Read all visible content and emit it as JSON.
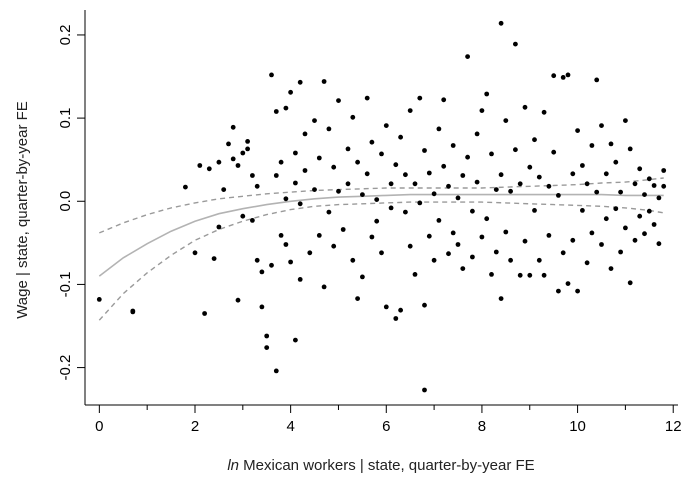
{
  "chart_data": {
    "type": "scatter",
    "title": "",
    "xlabel_italic": "ln",
    "xlabel_rest": " Mexican workers | state, quarter-by-year FE",
    "ylabel": "Wage | state, quarter-by-year FE",
    "xlim": [
      -0.3,
      12.1
    ],
    "ylim": [
      -0.245,
      0.23
    ],
    "x_ticks": [
      0,
      2,
      4,
      6,
      8,
      10,
      12
    ],
    "x_tick_labels": [
      "0",
      "2",
      "4",
      "6",
      "8",
      "10",
      "12"
    ],
    "x_minor_ticks": [
      1,
      3,
      5,
      7,
      9,
      11
    ],
    "y_ticks": [
      -0.2,
      -0.1,
      0.0,
      0.1,
      0.2
    ],
    "y_tick_labels": [
      "-0.2",
      "-0.1",
      "0.0",
      "0.1",
      "0.2"
    ],
    "grid": false,
    "colors": {
      "points": "#000000",
      "fit": "#b3b3b3",
      "ci": "#9a9a9a"
    },
    "fit_line": {
      "x": [
        0,
        0.5,
        1,
        1.5,
        2,
        2.5,
        3,
        3.5,
        4,
        4.5,
        5,
        5.5,
        6,
        6.5,
        7,
        7.5,
        8,
        8.5,
        9,
        9.5,
        10,
        10.5,
        11,
        11.5,
        11.8
      ],
      "y": [
        -0.09,
        -0.068,
        -0.051,
        -0.036,
        -0.024,
        -0.015,
        -0.009,
        -0.004,
        0.0,
        0.003,
        0.005,
        0.006,
        0.007,
        0.008,
        0.008,
        0.008,
        0.008,
        0.008,
        0.008,
        0.008,
        0.008,
        0.008,
        0.007,
        0.007,
        0.007
      ]
    },
    "ci_upper": {
      "x": [
        0,
        0.5,
        1,
        1.5,
        2,
        2.5,
        3,
        3.5,
        4,
        4.5,
        5,
        5.5,
        6,
        6.5,
        7,
        7.5,
        8,
        8.5,
        9,
        9.5,
        10,
        10.5,
        11,
        11.5,
        11.8
      ],
      "y": [
        -0.038,
        -0.026,
        -0.016,
        -0.008,
        -0.002,
        0.003,
        0.006,
        0.009,
        0.011,
        0.013,
        0.014,
        0.015,
        0.016,
        0.016,
        0.016,
        0.016,
        0.016,
        0.017,
        0.018,
        0.019,
        0.02,
        0.022,
        0.023,
        0.026,
        0.028
      ]
    },
    "ci_lower": {
      "x": [
        0,
        0.5,
        1,
        1.5,
        2,
        2.5,
        3,
        3.5,
        4,
        4.5,
        5,
        5.5,
        6,
        6.5,
        7,
        7.5,
        8,
        8.5,
        9,
        9.5,
        10,
        10.5,
        11,
        11.5,
        11.8
      ],
      "y": [
        -0.143,
        -0.111,
        -0.086,
        -0.065,
        -0.047,
        -0.034,
        -0.024,
        -0.016,
        -0.01,
        -0.006,
        -0.004,
        -0.003,
        -0.002,
        -0.001,
        -0.001,
        -0.001,
        -0.001,
        -0.002,
        -0.003,
        -0.004,
        -0.005,
        -0.006,
        -0.008,
        -0.011,
        -0.014
      ]
    },
    "points": [
      [
        0.0,
        -0.118
      ],
      [
        0.7,
        -0.132
      ],
      [
        0.7,
        -0.133
      ],
      [
        1.8,
        0.017
      ],
      [
        2.0,
        -0.062
      ],
      [
        2.1,
        0.043
      ],
      [
        2.2,
        -0.135
      ],
      [
        2.3,
        0.039
      ],
      [
        2.4,
        -0.069
      ],
      [
        2.5,
        0.047
      ],
      [
        2.5,
        -0.031
      ],
      [
        2.6,
        0.014
      ],
      [
        2.7,
        0.069
      ],
      [
        2.8,
        0.089
      ],
      [
        2.8,
        0.051
      ],
      [
        2.9,
        0.043
      ],
      [
        2.9,
        -0.119
      ],
      [
        3.0,
        0.058
      ],
      [
        3.0,
        -0.018
      ],
      [
        3.1,
        0.063
      ],
      [
        3.1,
        0.072
      ],
      [
        3.2,
        -0.023
      ],
      [
        3.2,
        0.031
      ],
      [
        3.3,
        -0.071
      ],
      [
        3.3,
        0.018
      ],
      [
        3.4,
        -0.085
      ],
      [
        3.4,
        -0.127
      ],
      [
        3.5,
        -0.176
      ],
      [
        3.5,
        -0.162
      ],
      [
        3.6,
        0.152
      ],
      [
        3.6,
        -0.077
      ],
      [
        3.7,
        -0.204
      ],
      [
        3.7,
        0.108
      ],
      [
        3.7,
        0.031
      ],
      [
        3.8,
        0.047
      ],
      [
        3.8,
        -0.041
      ],
      [
        3.9,
        0.112
      ],
      [
        3.9,
        0.003
      ],
      [
        3.9,
        -0.052
      ],
      [
        4.0,
        0.131
      ],
      [
        4.0,
        -0.073
      ],
      [
        4.1,
        -0.167
      ],
      [
        4.1,
        0.058
      ],
      [
        4.1,
        0.022
      ],
      [
        4.2,
        0.143
      ],
      [
        4.2,
        -0.094
      ],
      [
        4.2,
        -0.003
      ],
      [
        4.3,
        0.081
      ],
      [
        4.3,
        0.037
      ],
      [
        4.4,
        -0.062
      ],
      [
        4.5,
        0.097
      ],
      [
        4.5,
        0.014
      ],
      [
        4.6,
        0.052
      ],
      [
        4.6,
        -0.041
      ],
      [
        4.7,
        0.144
      ],
      [
        4.7,
        -0.103
      ],
      [
        4.8,
        0.087
      ],
      [
        4.8,
        -0.013
      ],
      [
        4.9,
        0.041
      ],
      [
        4.9,
        -0.054
      ],
      [
        5.0,
        0.121
      ],
      [
        5.0,
        0.012
      ],
      [
        5.1,
        -0.034
      ],
      [
        5.2,
        0.063
      ],
      [
        5.2,
        0.021
      ],
      [
        5.3,
        -0.071
      ],
      [
        5.3,
        0.101
      ],
      [
        5.4,
        -0.117
      ],
      [
        5.4,
        0.047
      ],
      [
        5.5,
        0.008
      ],
      [
        5.5,
        -0.091
      ],
      [
        5.6,
        0.124
      ],
      [
        5.6,
        0.033
      ],
      [
        5.7,
        -0.043
      ],
      [
        5.7,
        0.071
      ],
      [
        5.8,
        -0.024
      ],
      [
        5.8,
        0.002
      ],
      [
        5.9,
        0.057
      ],
      [
        5.9,
        -0.062
      ],
      [
        6.0,
        0.091
      ],
      [
        6.0,
        -0.127
      ],
      [
        6.1,
        0.021
      ],
      [
        6.1,
        -0.008
      ],
      [
        6.2,
        0.044
      ],
      [
        6.2,
        -0.141
      ],
      [
        6.3,
        0.077
      ],
      [
        6.3,
        -0.131
      ],
      [
        6.4,
        -0.013
      ],
      [
        6.4,
        0.032
      ],
      [
        6.5,
        0.109
      ],
      [
        6.5,
        -0.054
      ],
      [
        6.6,
        0.021
      ],
      [
        6.6,
        -0.088
      ],
      [
        6.7,
        0.124
      ],
      [
        6.7,
        -0.002
      ],
      [
        6.8,
        -0.227
      ],
      [
        6.8,
        -0.125
      ],
      [
        6.8,
        0.061
      ],
      [
        6.9,
        0.034
      ],
      [
        6.9,
        -0.042
      ],
      [
        7.0,
        0.009
      ],
      [
        7.0,
        -0.071
      ],
      [
        7.1,
        0.087
      ],
      [
        7.1,
        -0.023
      ],
      [
        7.2,
        0.122
      ],
      [
        7.2,
        0.042
      ],
      [
        7.3,
        -0.063
      ],
      [
        7.3,
        0.018
      ],
      [
        7.4,
        -0.038
      ],
      [
        7.4,
        0.067
      ],
      [
        7.5,
        0.004
      ],
      [
        7.5,
        -0.052
      ],
      [
        7.6,
        0.031
      ],
      [
        7.6,
        -0.081
      ],
      [
        7.7,
        0.174
      ],
      [
        7.7,
        0.053
      ],
      [
        7.8,
        -0.012
      ],
      [
        7.8,
        -0.067
      ],
      [
        7.9,
        0.081
      ],
      [
        7.9,
        0.023
      ],
      [
        8.0,
        -0.043
      ],
      [
        8.0,
        0.109
      ],
      [
        8.1,
        0.129
      ],
      [
        8.1,
        -0.021
      ],
      [
        8.2,
        0.057
      ],
      [
        8.2,
        -0.088
      ],
      [
        8.3,
        0.014
      ],
      [
        8.3,
        -0.061
      ],
      [
        8.4,
        0.214
      ],
      [
        8.4,
        0.032
      ],
      [
        8.4,
        -0.117
      ],
      [
        8.5,
        0.097
      ],
      [
        8.5,
        -0.037
      ],
      [
        8.6,
        0.012
      ],
      [
        8.6,
        -0.071
      ],
      [
        8.7,
        0.189
      ],
      [
        8.7,
        0.062
      ],
      [
        8.8,
        -0.089
      ],
      [
        8.8,
        0.021
      ],
      [
        8.9,
        0.113
      ],
      [
        8.9,
        -0.048
      ],
      [
        9.0,
        0.041
      ],
      [
        9.0,
        -0.089
      ],
      [
        9.1,
        -0.011
      ],
      [
        9.1,
        0.074
      ],
      [
        9.2,
        -0.071
      ],
      [
        9.2,
        0.029
      ],
      [
        9.3,
        0.107
      ],
      [
        9.3,
        -0.089
      ],
      [
        9.4,
        0.018
      ],
      [
        9.4,
        -0.041
      ],
      [
        9.5,
        0.059
      ],
      [
        9.5,
        0.151
      ],
      [
        9.6,
        -0.108
      ],
      [
        9.6,
        0.007
      ],
      [
        9.7,
        0.149
      ],
      [
        9.7,
        -0.062
      ],
      [
        9.8,
        0.152
      ],
      [
        9.8,
        -0.099
      ],
      [
        9.9,
        0.033
      ],
      [
        9.9,
        -0.047
      ],
      [
        10.0,
        -0.108
      ],
      [
        10.0,
        0.085
      ],
      [
        10.1,
        -0.011
      ],
      [
        10.1,
        0.043
      ],
      [
        10.2,
        -0.074
      ],
      [
        10.2,
        0.021
      ],
      [
        10.3,
        0.067
      ],
      [
        10.3,
        -0.038
      ],
      [
        10.4,
        0.146
      ],
      [
        10.4,
        0.011
      ],
      [
        10.5,
        0.091
      ],
      [
        10.5,
        -0.052
      ],
      [
        10.6,
        0.033
      ],
      [
        10.6,
        -0.021
      ],
      [
        10.7,
        0.069
      ],
      [
        10.7,
        -0.081
      ],
      [
        10.8,
        -0.009
      ],
      [
        10.8,
        0.047
      ],
      [
        10.9,
        -0.061
      ],
      [
        10.9,
        0.011
      ],
      [
        11.0,
        0.097
      ],
      [
        11.0,
        -0.032
      ],
      [
        11.1,
        0.063
      ],
      [
        11.1,
        -0.098
      ],
      [
        11.2,
        0.021
      ],
      [
        11.2,
        -0.047
      ],
      [
        11.3,
        -0.018
      ],
      [
        11.3,
        0.039
      ],
      [
        11.4,
        0.008
      ],
      [
        11.4,
        -0.039
      ],
      [
        11.5,
        0.027
      ],
      [
        11.5,
        -0.012
      ],
      [
        11.6,
        -0.028
      ],
      [
        11.6,
        0.019
      ],
      [
        11.7,
        -0.051
      ],
      [
        11.7,
        0.004
      ],
      [
        11.8,
        0.037
      ],
      [
        11.8,
        0.018
      ]
    ]
  }
}
